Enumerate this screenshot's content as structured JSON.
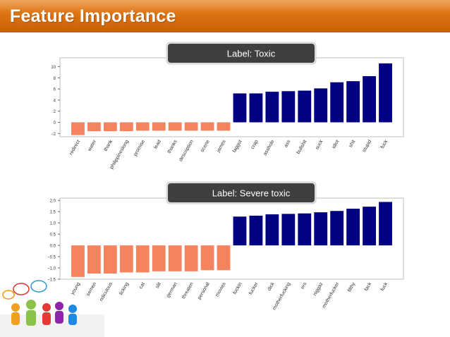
{
  "header": {
    "title": "Feature Importance"
  },
  "colors": {
    "positive": "#000080",
    "negative": "#f4845f",
    "header": "#d9711a"
  },
  "chart_data": [
    {
      "type": "bar",
      "title": "Label: Toxic",
      "categories": [
        "redirect",
        "water",
        "thank",
        "philippineslong",
        "promise",
        "lead",
        "thanks",
        "description",
        "scene",
        "james",
        "faggot",
        "crap",
        "asshole",
        "ass",
        "bullshit",
        "suck",
        "idiot",
        "shit",
        "stupid",
        "fuck"
      ],
      "values": [
        -2.3,
        -1.6,
        -1.6,
        -1.6,
        -1.5,
        -1.5,
        -1.5,
        -1.5,
        -1.5,
        -1.5,
        5.2,
        5.2,
        5.5,
        5.6,
        5.7,
        6.1,
        7.2,
        7.4,
        8.3,
        10.6
      ],
      "yticks": [
        "10",
        "8",
        "6",
        "4",
        "2",
        "0",
        "−2"
      ],
      "ytick_values": [
        10,
        8,
        6,
        4,
        2,
        0,
        -2
      ],
      "ylim": [
        -2.6,
        11.6
      ],
      "xlabel": "",
      "ylabel": ""
    },
    {
      "type": "bar",
      "title": "Label: Severe toxic",
      "categories": [
        "young",
        "semen",
        "ridiculous",
        "licking",
        "cat",
        "slit",
        "german",
        "threaten",
        "personal",
        "movies",
        "fuckin",
        "fucker",
        "dick",
        "motherfucking",
        "ers",
        "niggaz",
        "motherfucker",
        "filthy",
        "fack",
        "fuck"
      ],
      "values": [
        -1.4,
        -1.25,
        -1.25,
        -1.2,
        -1.2,
        -1.15,
        -1.15,
        -1.15,
        -1.1,
        -1.1,
        1.28,
        1.32,
        1.38,
        1.4,
        1.42,
        1.47,
        1.53,
        1.63,
        1.72,
        1.93
      ],
      "yticks": [
        "2.0",
        "1.5",
        "1.0",
        "0.5",
        "0.0",
        "−0.5",
        "−1.0",
        "−1.5"
      ],
      "ytick_values": [
        2.0,
        1.5,
        1.0,
        0.5,
        0.0,
        -0.5,
        -1.0,
        -1.5
      ],
      "ylim": [
        -1.5,
        2.1
      ],
      "xlabel": "",
      "ylabel": ""
    }
  ]
}
